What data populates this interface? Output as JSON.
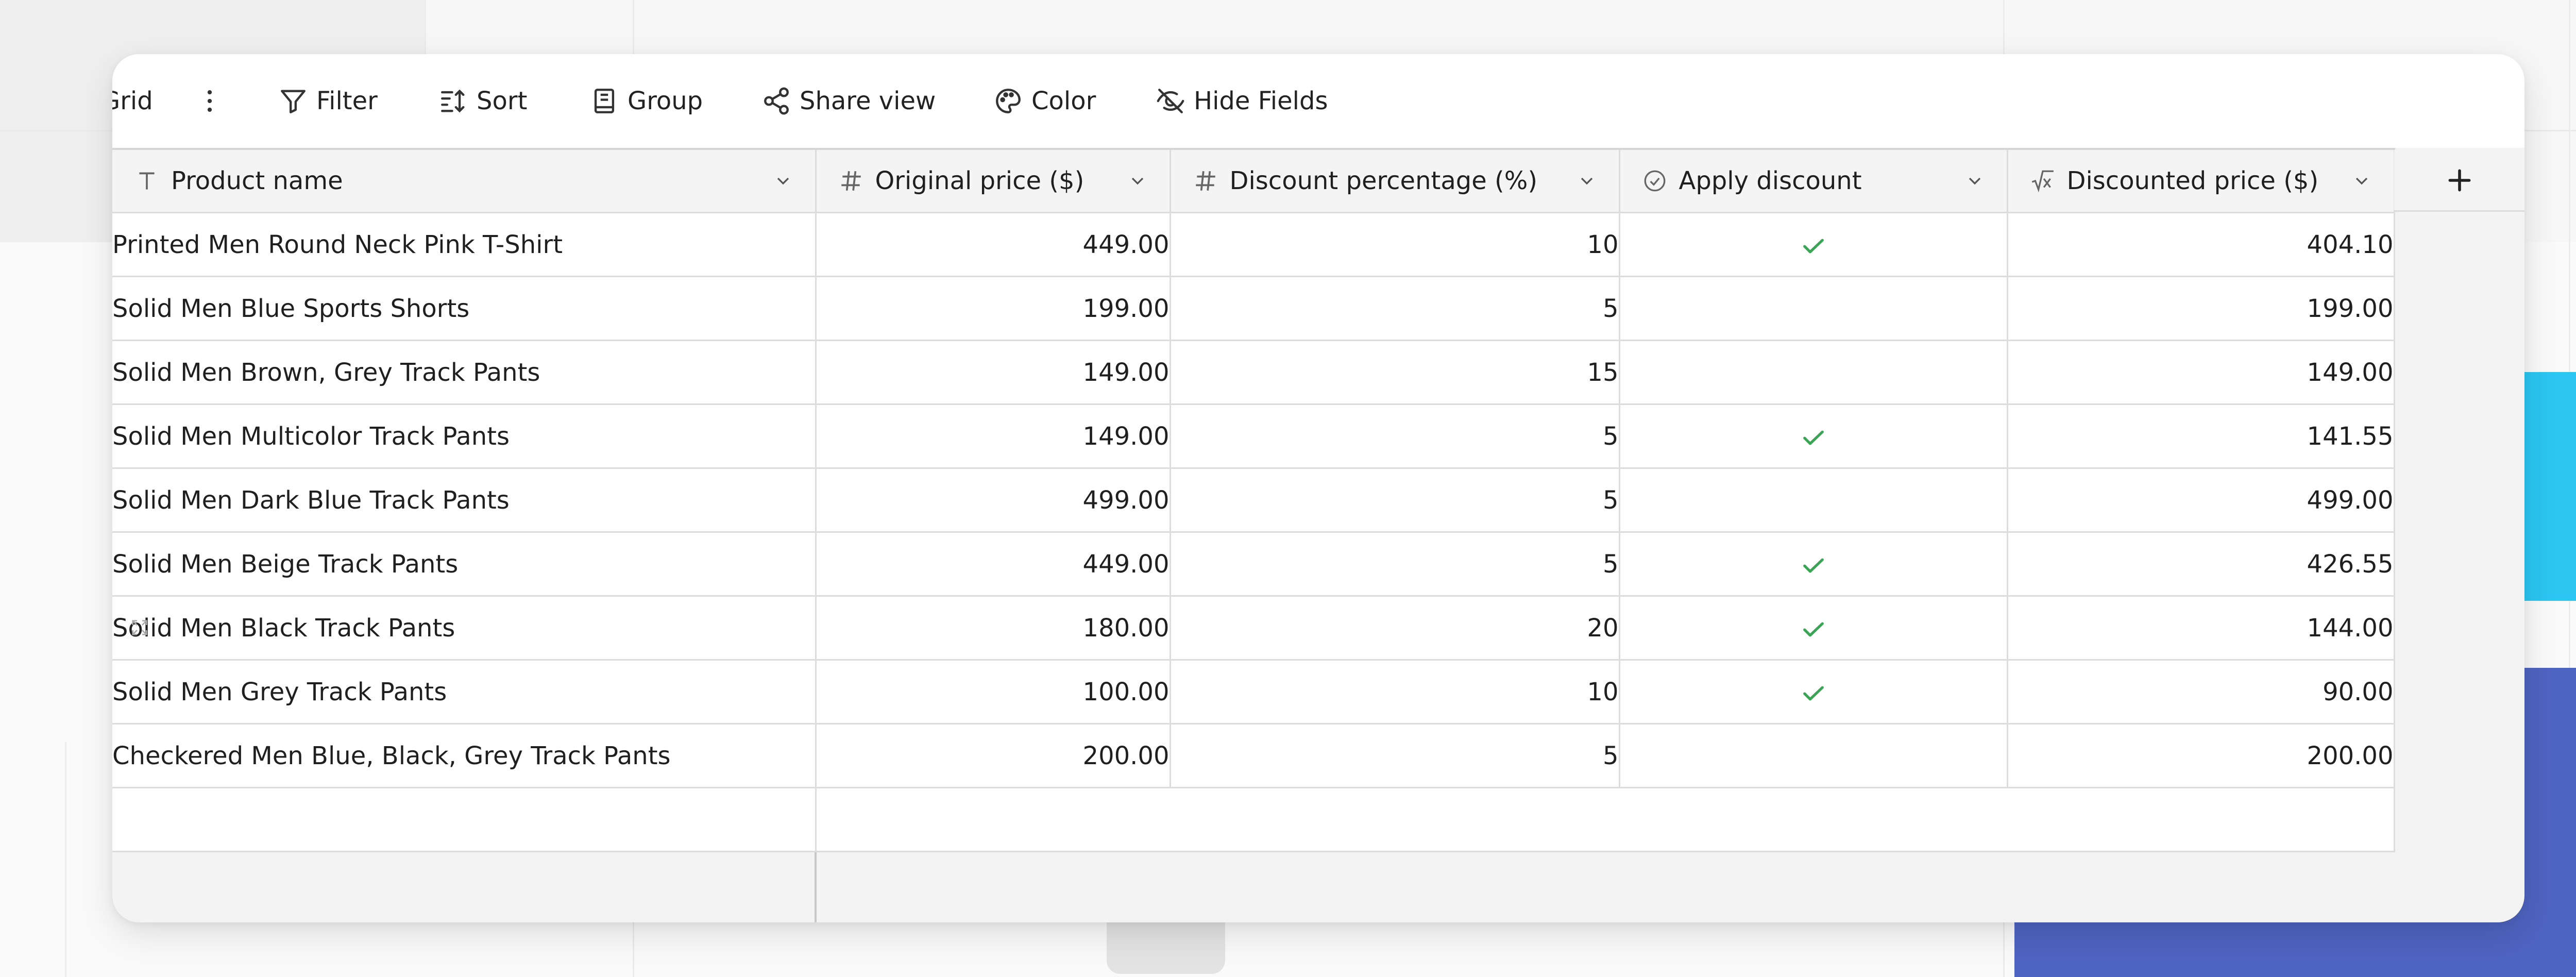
{
  "toolbar": {
    "view_name": "Grid",
    "items": [
      {
        "label": "Filter",
        "icon": "filter-icon"
      },
      {
        "label": "Sort",
        "icon": "sort-icon"
      },
      {
        "label": "Group",
        "icon": "group-icon"
      },
      {
        "label": "Share view",
        "icon": "share-icon"
      },
      {
        "label": "Color",
        "icon": "palette-icon"
      },
      {
        "label": "Hide Fields",
        "icon": "eye-off-icon"
      }
    ]
  },
  "columns": [
    {
      "label": "Product name",
      "icon": "text-field-icon"
    },
    {
      "label": "Original price ($)",
      "icon": "number-field-icon"
    },
    {
      "label": "Discount percentage (%)",
      "icon": "number-field-icon"
    },
    {
      "label": "Apply discount",
      "icon": "checkbox-field-icon"
    },
    {
      "label": "Discounted price ($)",
      "icon": "formula-field-icon"
    }
  ],
  "rows": [
    {
      "name": "Printed Men Round Neck Pink T-Shirt",
      "original": "449.00",
      "discount": "10",
      "apply": true,
      "discounted": "404.10"
    },
    {
      "name": "Solid Men Blue Sports Shorts",
      "original": "199.00",
      "discount": "5",
      "apply": false,
      "discounted": "199.00"
    },
    {
      "name": "Solid Men Brown, Grey Track Pants",
      "original": "149.00",
      "discount": "15",
      "apply": false,
      "discounted": "149.00"
    },
    {
      "name": "Solid Men Multicolor Track Pants",
      "original": "149.00",
      "discount": "5",
      "apply": true,
      "discounted": "141.55"
    },
    {
      "name": "Solid Men Dark Blue Track Pants",
      "original": "499.00",
      "discount": "5",
      "apply": false,
      "discounted": "499.00"
    },
    {
      "name": "Solid Men Beige Track Pants",
      "original": "449.00",
      "discount": "5",
      "apply": true,
      "discounted": "426.55"
    },
    {
      "name": "Solid Men Black Track Pants",
      "original": "180.00",
      "discount": "20",
      "apply": true,
      "discounted": "144.00"
    },
    {
      "name": "Solid Men Grey Track Pants",
      "original": "100.00",
      "discount": "10",
      "apply": true,
      "discounted": "90.00"
    },
    {
      "name": "Checkered Men Blue, Black, Grey Track Pants",
      "original": "200.00",
      "discount": "5",
      "apply": false,
      "discounted": "200.00"
    }
  ],
  "hovered_row_index": 6,
  "colors": {
    "check": "#3aa655",
    "accent_cyan": "#2bc6f2",
    "accent_indigo": "#4e64c1"
  }
}
